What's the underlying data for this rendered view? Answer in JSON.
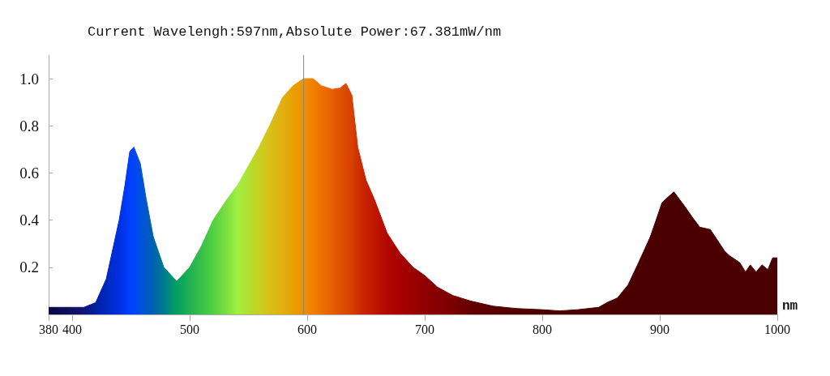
{
  "chart_data": {
    "type": "area",
    "title": "Current Wavelengh:597nm,Absolute Power:67.381mW/nm",
    "xlabel": "nm",
    "x": [
      380,
      390,
      400,
      410,
      420,
      429,
      440,
      445,
      449,
      452.5,
      458,
      463,
      469,
      478,
      489,
      500,
      510,
      520,
      532,
      541,
      550,
      559,
      568,
      579,
      588,
      597,
      605,
      612,
      621,
      628,
      633,
      638,
      643,
      650,
      657,
      668,
      679,
      690,
      700,
      711,
      724,
      739,
      758,
      778,
      800,
      815,
      830,
      848,
      855,
      864,
      873,
      882,
      892,
      902,
      912,
      921,
      928,
      934,
      943,
      955,
      959,
      968,
      973,
      977,
      982,
      987,
      992,
      996,
      1000
    ],
    "values": [
      0.03,
      0.03,
      0.03,
      0.03,
      0.05,
      0.15,
      0.4,
      0.55,
      0.69,
      0.71,
      0.64,
      0.49,
      0.33,
      0.2,
      0.14,
      0.2,
      0.29,
      0.4,
      0.49,
      0.55,
      0.63,
      0.71,
      0.8,
      0.92,
      0.97,
      1.0,
      1.0,
      0.97,
      0.955,
      0.96,
      0.98,
      0.93,
      0.71,
      0.57,
      0.49,
      0.345,
      0.26,
      0.2,
      0.165,
      0.115,
      0.08,
      0.057,
      0.035,
      0.025,
      0.02,
      0.015,
      0.02,
      0.03,
      0.05,
      0.07,
      0.125,
      0.22,
      0.33,
      0.475,
      0.52,
      0.46,
      0.41,
      0.37,
      0.36,
      0.27,
      0.25,
      0.22,
      0.18,
      0.21,
      0.18,
      0.21,
      0.19,
      0.24,
      0.24
    ],
    "colors": [
      "#0a0a40",
      "#0c0c50",
      "#101060",
      "#101478",
      "#0020a0",
      "#0028c0",
      "#0030e0",
      "#0038f0",
      "#0040ff",
      "#0044f8",
      "#0050e0",
      "#0058c8",
      "#0060b0",
      "#007a90",
      "#00a060",
      "#20b050",
      "#38c048",
      "#50d040",
      "#80e040",
      "#a0f040",
      "#b0e030",
      "#c8d020",
      "#d8c018",
      "#e0b010",
      "#e8a000",
      "#f09000",
      "#f08000",
      "#ec7000",
      "#e86000",
      "#e05000",
      "#d84800",
      "#d84000",
      "#d03000",
      "#c82000",
      "#c01800",
      "#b00800",
      "#a80000",
      "#9a0000",
      "#900000",
      "#850000",
      "#7a0000",
      "#650000",
      "#580000",
      "#520000",
      "#4c0000",
      "#4a0000",
      "#4a0000",
      "#4a0000",
      "#4a0000",
      "#4a0000",
      "#4a0000",
      "#4a0000",
      "#4a0000",
      "#4a0000",
      "#4a0000",
      "#4a0000",
      "#4a0000",
      "#4a0000",
      "#4a0000",
      "#4a0000",
      "#4a0000",
      "#4a0000",
      "#4a0000",
      "#4a0000",
      "#4a0000",
      "#4a0000",
      "#4a0000",
      "#4a0000",
      "#4a0000"
    ],
    "xlim": [
      380,
      1000
    ],
    "xticks": [
      380,
      400,
      500,
      600,
      700,
      800,
      900,
      1000
    ],
    "ylim": [
      0,
      1.1
    ],
    "yticks": [
      {
        "value": 0.2,
        "label": "0.2"
      },
      {
        "value": 0.4,
        "label": "0.4"
      },
      {
        "value": 0.6,
        "label": "0.6"
      },
      {
        "value": 0.8,
        "label": "0.8"
      },
      {
        "value": 1,
        "label": "1.0"
      }
    ],
    "ref_lines": [
      {
        "axis": "x",
        "value": 597,
        "color": "#888888"
      }
    ],
    "grid": false,
    "marker": "none"
  }
}
